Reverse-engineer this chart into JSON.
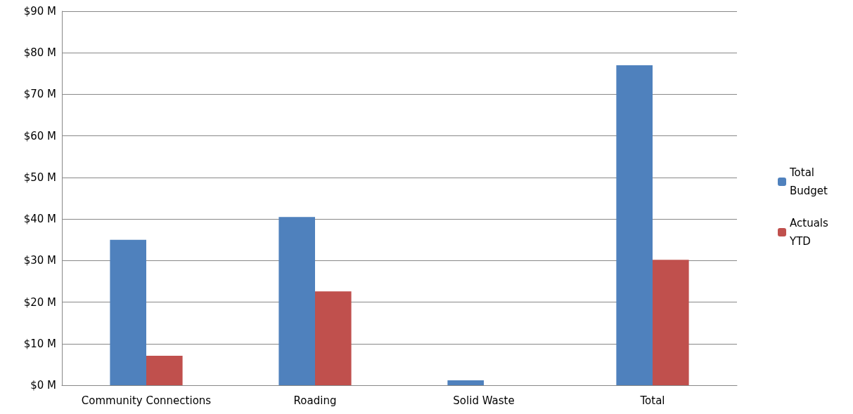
{
  "chart_data": {
    "type": "bar",
    "categories": [
      "Community Connections",
      "Roading",
      "Solid Waste",
      "Total"
    ],
    "series": [
      {
        "name": "Total Budget",
        "color": "#4f81bd",
        "values": [
          35,
          40.5,
          1.2,
          77
        ]
      },
      {
        "name": "Actuals YTD",
        "color": "#c0504d",
        "values": [
          7.1,
          22.6,
          0,
          30.2
        ]
      }
    ],
    "ylim": [
      0,
      90
    ],
    "yticks": [
      {
        "value": 0,
        "label": "$0 M"
      },
      {
        "value": 10,
        "label": "$10 M"
      },
      {
        "value": 20,
        "label": "$20 M"
      },
      {
        "value": 30,
        "label": "$30 M"
      },
      {
        "value": 40,
        "label": "$40 M"
      },
      {
        "value": 50,
        "label": "$50 M"
      },
      {
        "value": 60,
        "label": "$60 M"
      },
      {
        "value": 70,
        "label": "$70 M"
      },
      {
        "value": 80,
        "label": "$80 M"
      },
      {
        "value": 90,
        "label": "$90 M"
      }
    ],
    "grid": "y",
    "legend": "right"
  }
}
